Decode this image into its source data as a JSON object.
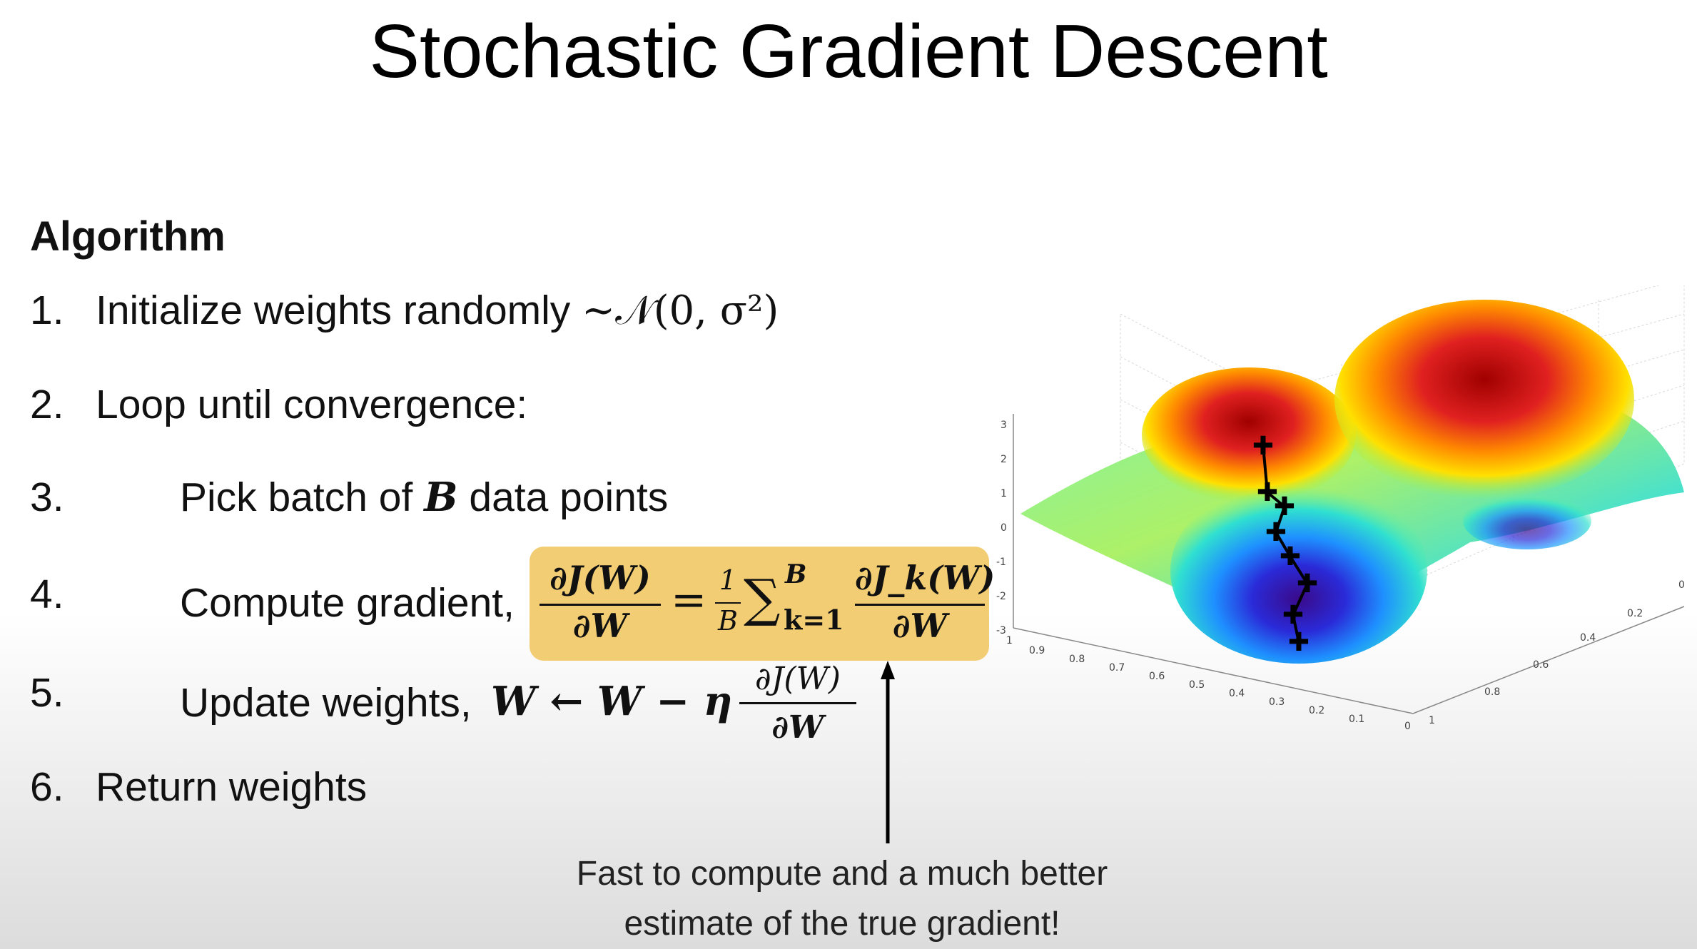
{
  "slide": {
    "title": "Stochastic Gradient Descent",
    "heading": "Algorithm",
    "steps": [
      {
        "num": "1.",
        "text": "Initialize weights randomly",
        "math": "~𝒩(0, σ²)"
      },
      {
        "num": "2.",
        "text": "Loop until convergence:"
      },
      {
        "num": "3.",
        "text": "Pick batch of",
        "var": "B",
        "text_after": "data points"
      },
      {
        "num": "4.",
        "text": "Compute gradient,"
      },
      {
        "num": "5.",
        "text": "Update weights,"
      },
      {
        "num": "6.",
        "text": "Return weights"
      }
    ],
    "gradient_formula": {
      "lhs_num": "∂J(W)",
      "lhs_den": "∂W",
      "eq": "=",
      "coef_num": "1",
      "coef_den": "B",
      "sum": "∑",
      "sum_upper": "B",
      "sum_lower": "k=1",
      "rhs_num": "∂J_k(W)",
      "rhs_den": "∂W"
    },
    "update_formula": {
      "lhs": "W ← W − η",
      "num": "∂J(W)",
      "den": "∂W"
    },
    "note_line1": "Fast to compute and a much better",
    "note_line2": "estimate of the true gradient!"
  },
  "plot": {
    "z_ticks": [
      "3",
      "2",
      "1",
      "0",
      "-1",
      "-2",
      "-3"
    ],
    "x_ticks": [
      "1",
      "0.9",
      "0.8",
      "0.7",
      "0.6",
      "0.5",
      "0.4",
      "0.3",
      "0.2",
      "0.1",
      "0"
    ],
    "y_ticks": [
      "0",
      "0.2",
      "0.4",
      "0.6",
      "0.8",
      "1"
    ],
    "path_points": 8
  }
}
